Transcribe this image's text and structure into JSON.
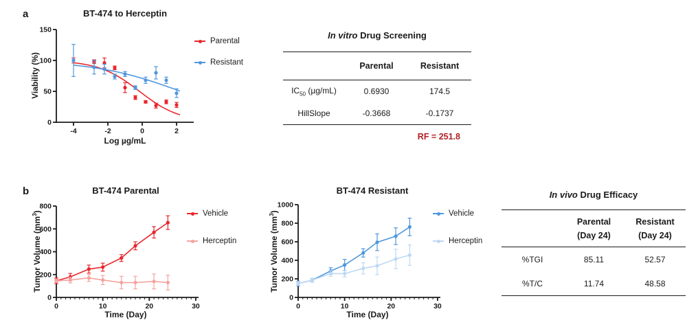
{
  "panels": {
    "a_label": "a",
    "b_label": "b"
  },
  "colors": {
    "axis": "#1a1a1a"
  },
  "chart_data": {
    "dose_response": {
      "type": "scatter",
      "title": "BT-474 to Herceptin",
      "xlabel": "Log µg/mL",
      "ylabel": "Viability (%)",
      "xlim": [
        -5,
        3
      ],
      "ylim": [
        0,
        150
      ],
      "xticks": [
        -4,
        -2,
        0,
        2
      ],
      "yticks": [
        0,
        50,
        100,
        150
      ],
      "legend_position": "right",
      "x": [
        -4,
        -2.8,
        -2.2,
        -1.6,
        -1,
        -0.4,
        0.2,
        0.8,
        1.4,
        2
      ],
      "series": [
        {
          "name": "Parental",
          "color": "#e8262c",
          "values": [
            100,
            98,
            96,
            88,
            56,
            40,
            33,
            27,
            33,
            28
          ],
          "errors": [
            4,
            3,
            8,
            3,
            8,
            3,
            2,
            4,
            3,
            4
          ],
          "fit": {
            "top": 100,
            "bottom": 0,
            "logIC50": -0.1593,
            "hill": -0.3668,
            "xmin": -4,
            "xmax": 2.2
          }
        },
        {
          "name": "Resistant",
          "color": "#4f97dd",
          "values": [
            100,
            89,
            86,
            74,
            78,
            56,
            68,
            80,
            68,
            47
          ],
          "errors": [
            26,
            11,
            8,
            4,
            4,
            3,
            5,
            10,
            5,
            7
          ],
          "fit": {
            "top": 100,
            "bottom": 0,
            "logIC50": 2.2418,
            "hill": -0.1737,
            "xmin": -4,
            "xmax": 2.2
          }
        }
      ]
    },
    "parental_tumor": {
      "type": "line",
      "title": "BT-474 Parental",
      "xlabel": "Time (Day)",
      "ylabel_pre": "Tumor Volume (mm",
      "ylabel_sup": "3",
      "ylabel_post": ")",
      "xlim": [
        0,
        30.6
      ],
      "ylim": [
        0,
        800
      ],
      "xticks": [
        0,
        10,
        20,
        30
      ],
      "yticks": [
        0,
        200,
        400,
        600,
        800
      ],
      "minor_x": 1,
      "legend_position": "right",
      "x": [
        0,
        3,
        7,
        10,
        14,
        17,
        21,
        24
      ],
      "series": [
        {
          "name": "Vehicle",
          "color": "#e8262c",
          "values": [
            145,
            180,
            248,
            265,
            345,
            452,
            570,
            655
          ],
          "errors": [
            25,
            30,
            35,
            35,
            30,
            35,
            50,
            60
          ]
        },
        {
          "name": "Herceptin",
          "color": "#f5a3a0",
          "values": [
            145,
            152,
            170,
            152,
            130,
            130,
            140,
            130
          ],
          "errors": [
            15,
            25,
            30,
            40,
            55,
            55,
            65,
            65
          ]
        }
      ]
    },
    "resistant_tumor": {
      "type": "line",
      "title": "BT-474 Resistant",
      "xlabel": "Time (Day)",
      "ylabel_pre": "Tumor Volume (mm",
      "ylabel_sup": "3",
      "ylabel_post": ")",
      "xlim": [
        0,
        30.6
      ],
      "ylim": [
        0,
        1000
      ],
      "xticks": [
        0,
        10,
        20,
        30
      ],
      "yticks": [
        0,
        200,
        400,
        600,
        800,
        1000
      ],
      "minor_x": 1,
      "legend_position": "right",
      "x": [
        0,
        3,
        7,
        10,
        14,
        17,
        21,
        24
      ],
      "series": [
        {
          "name": "Vehicle",
          "color": "#4f97dd",
          "values": [
            150,
            185,
            285,
            350,
            480,
            595,
            660,
            760
          ],
          "errors": [
            25,
            20,
            35,
            60,
            45,
            90,
            90,
            95
          ]
        },
        {
          "name": "Herceptin",
          "color": "#bdd8f3",
          "values": [
            150,
            185,
            258,
            256,
            313,
            341,
            415,
            456
          ],
          "errors": [
            20,
            20,
            30,
            35,
            60,
            95,
            105,
            110
          ]
        }
      ]
    }
  },
  "tables": {
    "invitro": {
      "title_italic": "In vitro",
      "title_rest": " Drug Screening",
      "col_headers": [
        "Parental",
        "Resistant"
      ],
      "rows": [
        {
          "label_pre": "IC",
          "label_sub": "50",
          "label_post": " (µg/mL)",
          "values": [
            "0.6930",
            "174.5"
          ]
        },
        {
          "label_pre": "HillSlope",
          "label_sub": "",
          "label_post": "",
          "values": [
            "-0.3668",
            "-0.1737"
          ]
        }
      ],
      "footnote": "RF = 251.8",
      "footnote_color": "#b22025"
    },
    "invivo": {
      "title_italic": "In vivo",
      "title_rest": " Drug Efficacy",
      "col_headers": [
        {
          "line1": "Parental",
          "line2": "(Day 24)"
        },
        {
          "line1": "Resistant",
          "line2": "(Day 24)"
        }
      ],
      "rows": [
        {
          "label": "%TGI",
          "values": [
            "85.11",
            "52.57"
          ]
        },
        {
          "label": "%T/C",
          "values": [
            "11.74",
            "48.58"
          ]
        }
      ]
    }
  }
}
